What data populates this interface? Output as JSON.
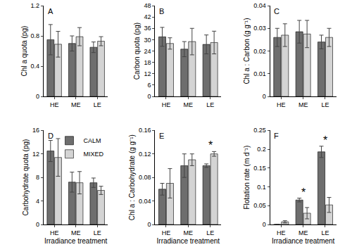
{
  "chart_data": [
    {
      "type": "bar",
      "title": "A",
      "categories": [
        "HE",
        "ME",
        "LE"
      ],
      "ylabel": "Chl a quota (pg)",
      "ylim": [
        0,
        1.2
      ],
      "yticks": [
        0,
        0.4,
        0.8,
        1.2
      ],
      "series": [
        {
          "name": "CALM",
          "color": "#6e6e6e",
          "values": [
            0.75,
            0.7,
            0.65
          ],
          "errors": [
            0.2,
            0.1,
            0.07
          ]
        },
        {
          "name": "MIXED",
          "color": "#d4d4d4",
          "values": [
            0.69,
            0.79,
            0.73
          ],
          "errors": [
            0.17,
            0.12,
            0.06
          ]
        }
      ]
    },
    {
      "type": "bar",
      "title": "B",
      "categories": [
        "HE",
        "ME",
        "LE"
      ],
      "ylabel": "Carbon quota (pg)",
      "ylim": [
        0,
        48
      ],
      "yticks": [
        0,
        6,
        12,
        18,
        24,
        30,
        36,
        42,
        48
      ],
      "series": [
        {
          "name": "CALM",
          "color": "#6e6e6e",
          "values": [
            31.5,
            25,
            27.5
          ],
          "errors": [
            5,
            4,
            5
          ]
        },
        {
          "name": "MIXED",
          "color": "#d4d4d4",
          "values": [
            28,
            29,
            28.5
          ],
          "errors": [
            3,
            7,
            6
          ]
        }
      ]
    },
    {
      "type": "bar",
      "title": "C",
      "categories": [
        "HE",
        "ME",
        "LE"
      ],
      "ylabel": "Chl a : Carbon (g g⁻¹)",
      "ylim": [
        0,
        0.04
      ],
      "yticks": [
        0,
        0.01,
        0.02,
        0.03,
        0.04
      ],
      "series": [
        {
          "name": "CALM",
          "color": "#6e6e6e",
          "values": [
            0.026,
            0.0285,
            0.024
          ],
          "errors": [
            0.004,
            0.005,
            0.003
          ]
        },
        {
          "name": "MIXED",
          "color": "#d4d4d4",
          "values": [
            0.027,
            0.0275,
            0.026
          ],
          "errors": [
            0.005,
            0.006,
            0.004
          ]
        }
      ]
    },
    {
      "type": "bar",
      "title": "D",
      "categories": [
        "HE",
        "ME",
        "LE"
      ],
      "ylabel": "Carbohydrate quota (pg)",
      "xlabel": "Irradiance treatment",
      "legend": "upper right",
      "ylim": [
        0,
        16
      ],
      "yticks": [
        0,
        4,
        8,
        12,
        16
      ],
      "series": [
        {
          "name": "CALM",
          "color": "#6e6e6e",
          "values": [
            12.5,
            7.2,
            7.1
          ],
          "errors": [
            1.8,
            1.7,
            0.8
          ]
        },
        {
          "name": "MIXED",
          "color": "#d4d4d4",
          "values": [
            11.4,
            7.1,
            5.8
          ],
          "errors": [
            3.2,
            1.9,
            0.7
          ]
        }
      ]
    },
    {
      "type": "bar",
      "title": "E",
      "categories": [
        "HE",
        "ME",
        "LE"
      ],
      "ylabel": "Chl a : Carbohydrate (g g⁻¹)",
      "xlabel": "Irradiance treatment",
      "ylim": [
        0,
        0.16
      ],
      "yticks": [
        0,
        0.04,
        0.08,
        0.12,
        0.16
      ],
      "annotations": [
        {
          "category": "LE",
          "text": "*"
        }
      ],
      "series": [
        {
          "name": "CALM",
          "color": "#6e6e6e",
          "values": [
            0.06,
            0.1,
            0.1
          ],
          "errors": [
            0.01,
            0.02,
            0.003
          ]
        },
        {
          "name": "MIXED",
          "color": "#d4d4d4",
          "values": [
            0.07,
            0.11,
            0.12
          ],
          "errors": [
            0.025,
            0.01,
            0.004
          ]
        }
      ]
    },
    {
      "type": "bar",
      "title": "F",
      "categories": [
        "HE",
        "ME",
        "LE"
      ],
      "ylabel": "Flotation rate (m d⁻¹)",
      "xlabel": "Irradiance treatment",
      "ylim": [
        0,
        0.25
      ],
      "yticks": [
        0,
        0.05,
        0.1,
        0.15,
        0.2,
        0.25
      ],
      "annotations": [
        {
          "category": "ME",
          "text": "*"
        },
        {
          "category": "LE",
          "text": "*"
        }
      ],
      "series": [
        {
          "name": "CALM",
          "color": "#6e6e6e",
          "values": [
            0,
            0.065,
            0.193
          ],
          "errors": [
            0,
            0.005,
            0.015
          ]
        },
        {
          "name": "MIXED",
          "color": "#d4d4d4",
          "values": [
            0.007,
            0.03,
            0.052
          ],
          "errors": [
            0.003,
            0.015,
            0.02
          ]
        }
      ]
    }
  ]
}
